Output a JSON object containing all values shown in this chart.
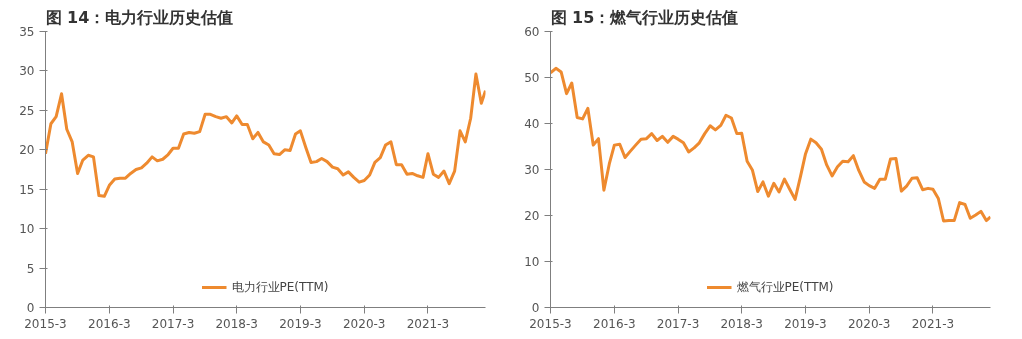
{
  "chart_data": [
    {
      "type": "line",
      "title": "图 14：电力行业历史估值",
      "x": [
        "2015-03",
        "2015-04",
        "2015-05",
        "2015-06",
        "2015-07",
        "2015-08",
        "2015-09",
        "2015-10",
        "2015-11",
        "2015-12",
        "2016-01",
        "2016-02",
        "2016-03",
        "2016-04",
        "2016-05",
        "2016-06",
        "2016-07",
        "2016-08",
        "2016-09",
        "2016-10",
        "2016-11",
        "2016-12",
        "2017-01",
        "2017-02",
        "2017-03",
        "2017-04",
        "2017-05",
        "2017-06",
        "2017-07",
        "2017-08",
        "2017-09",
        "2017-10",
        "2017-11",
        "2017-12",
        "2018-01",
        "2018-02",
        "2018-03",
        "2018-04",
        "2018-05",
        "2018-06",
        "2018-07",
        "2018-08",
        "2018-09",
        "2018-10",
        "2018-11",
        "2018-12",
        "2019-01",
        "2019-02",
        "2019-03",
        "2019-04",
        "2019-05",
        "2019-06",
        "2019-07",
        "2019-08",
        "2019-09",
        "2019-10",
        "2019-11",
        "2019-12",
        "2020-01",
        "2020-02",
        "2020-03",
        "2020-04",
        "2020-05",
        "2020-06",
        "2020-07",
        "2020-08",
        "2020-09",
        "2020-10",
        "2020-11",
        "2020-12",
        "2021-01",
        "2021-02",
        "2021-03",
        "2021-04",
        "2021-05",
        "2021-06",
        "2021-07",
        "2021-08",
        "2021-09",
        "2021-10",
        "2021-11",
        "2021-12",
        "2022-01",
        "2022-01-25"
      ],
      "series": [
        {
          "name": "电力行业PE(TTM)",
          "color": "#ee8a2f",
          "values": [
            19.5,
            23.3,
            24.2,
            27.1,
            22.6,
            21,
            17,
            18.7,
            19.3,
            19.1,
            14.2,
            14.1,
            15.5,
            16.3,
            16.4,
            16.4,
            17,
            17.5,
            17.7,
            18.3,
            19.1,
            18.6,
            18.8,
            19.4,
            20.2,
            20.2,
            22,
            22.2,
            22.1,
            22.3,
            24.5,
            24.5,
            24.2,
            24,
            24.2,
            23.4,
            24.3,
            23.2,
            23.2,
            21.4,
            22.2,
            21,
            20.6,
            19.5,
            19.4,
            20,
            19.9,
            22,
            22.4,
            20.3,
            18.4,
            18.5,
            18.9,
            18.5,
            17.8,
            17.6,
            16.8,
            17.2,
            16.5,
            15.9,
            16.1,
            16.8,
            18.4,
            19,
            20.6,
            21,
            18.1,
            18.1,
            16.9,
            17,
            16.7,
            16.5,
            19.5,
            16.9,
            16.5,
            17.3,
            15.7,
            17.3,
            22.4,
            21,
            24,
            29.6,
            25.9,
            27.5
          ]
        }
      ],
      "xlim": [
        "2015-03",
        "2022-01-25"
      ],
      "xticks": [
        {
          "value": "2015-03",
          "label": "2015-3"
        },
        {
          "value": "2016-03",
          "label": "2016-3"
        },
        {
          "value": "2017-03",
          "label": "2017-3"
        },
        {
          "value": "2018-03",
          "label": "2018-3"
        },
        {
          "value": "2019-03",
          "label": "2019-3"
        },
        {
          "value": "2020-03",
          "label": "2020-3"
        },
        {
          "value": "2021-03",
          "label": "2021-3"
        }
      ],
      "ylim": [
        0,
        35
      ],
      "yticks": [
        0,
        5,
        10,
        15,
        20,
        25,
        30,
        35
      ],
      "grid": false,
      "legend": "bottom",
      "marker": "none",
      "line_style": "solid"
    },
    {
      "type": "line",
      "title": "图 15：燃气行业历史估值",
      "x": [
        "2015-03",
        "2015-04",
        "2015-05",
        "2015-06",
        "2015-07",
        "2015-08",
        "2015-09",
        "2015-10",
        "2015-11",
        "2015-12",
        "2016-01",
        "2016-02",
        "2016-03",
        "2016-04",
        "2016-05",
        "2016-06",
        "2016-07",
        "2016-08",
        "2016-09",
        "2016-10",
        "2016-11",
        "2016-12",
        "2017-01",
        "2017-02",
        "2017-03",
        "2017-04",
        "2017-05",
        "2017-06",
        "2017-07",
        "2017-08",
        "2017-09",
        "2017-10",
        "2017-11",
        "2017-12",
        "2018-01",
        "2018-02",
        "2018-03",
        "2018-04",
        "2018-05",
        "2018-06",
        "2018-07",
        "2018-08",
        "2018-09",
        "2018-10",
        "2018-11",
        "2018-12",
        "2019-01",
        "2019-02",
        "2019-03",
        "2019-04",
        "2019-05",
        "2019-06",
        "2019-07",
        "2019-08",
        "2019-09",
        "2019-10",
        "2019-11",
        "2019-12",
        "2020-01",
        "2020-02",
        "2020-03",
        "2020-04",
        "2020-05",
        "2020-06",
        "2020-07",
        "2020-08",
        "2020-09",
        "2020-10",
        "2020-11",
        "2020-12",
        "2021-01",
        "2021-02",
        "2021-03",
        "2021-04",
        "2021-05",
        "2021-06",
        "2021-07",
        "2021-08",
        "2021-09",
        "2021-10",
        "2021-11",
        "2021-12",
        "2022-01",
        "2022-01-25"
      ],
      "series": [
        {
          "name": "燃气行业PE(TTM)",
          "color": "#ee8a2f",
          "values": [
            51,
            52,
            51.2,
            46.5,
            48.8,
            41.3,
            41,
            43.3,
            35.3,
            36.7,
            25.5,
            31.2,
            35.3,
            35.5,
            32.6,
            34,
            35.3,
            36.6,
            36.7,
            37.8,
            36.3,
            37.2,
            35.9,
            37.2,
            36.6,
            35.8,
            33.8,
            34.7,
            35.8,
            37.8,
            39.5,
            38.6,
            39.6,
            41.8,
            41.2,
            37.8,
            37.9,
            31.8,
            29.9,
            25.2,
            27.3,
            24.2,
            27,
            25.1,
            27.9,
            25.7,
            23.5,
            28.5,
            33.3,
            36.6,
            35.8,
            34.4,
            31,
            28.6,
            30.6,
            31.8,
            31.7,
            33,
            29.8,
            27.3,
            26.5,
            25.9,
            27.9,
            27.9,
            32.3,
            32.4,
            25.3,
            26.4,
            28.1,
            28.2,
            25.6,
            25.9,
            25.7,
            23.7,
            18.8,
            18.9,
            18.9,
            22.8,
            22.4,
            19.4,
            20.1,
            20.9,
            18.9,
            19.7
          ]
        }
      ],
      "xlim": [
        "2015-03",
        "2022-01-25"
      ],
      "xticks": [
        {
          "value": "2015-03",
          "label": "2015-3"
        },
        {
          "value": "2016-03",
          "label": "2016-3"
        },
        {
          "value": "2017-03",
          "label": "2017-3"
        },
        {
          "value": "2018-03",
          "label": "2018-3"
        },
        {
          "value": "2019-03",
          "label": "2019-3"
        },
        {
          "value": "2020-03",
          "label": "2020-3"
        },
        {
          "value": "2021-03",
          "label": "2021-3"
        }
      ],
      "ylim": [
        0,
        60
      ],
      "yticks": [
        0,
        10,
        20,
        30,
        40,
        50,
        60
      ],
      "grid": false,
      "legend": "bottom",
      "marker": "none",
      "line_style": "solid"
    }
  ]
}
